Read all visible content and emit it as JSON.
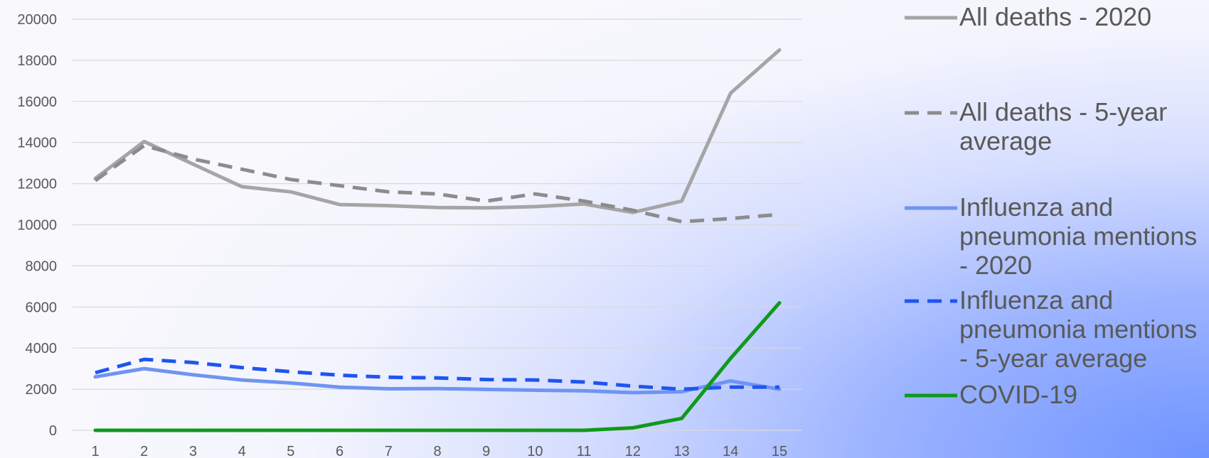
{
  "chart_data": {
    "type": "line",
    "x": [
      1,
      2,
      3,
      4,
      5,
      6,
      7,
      8,
      9,
      10,
      11,
      12,
      13,
      14,
      15
    ],
    "ylim": [
      0,
      20000
    ],
    "yticks": [
      0,
      2000,
      4000,
      6000,
      8000,
      10000,
      12000,
      14000,
      16000,
      18000,
      20000
    ],
    "grid": true,
    "legend_position": "right",
    "series": [
      {
        "name": "All deaths - 2020",
        "legend_lines": [
          "All deaths - 2020"
        ],
        "color": "#a5a5a5",
        "style": "solid",
        "values": [
          12250,
          14050,
          12950,
          11850,
          11600,
          10980,
          10930,
          10840,
          10820,
          10880,
          11010,
          10600,
          11150,
          16400,
          18500
        ]
      },
      {
        "name": "All deaths - 5-year average",
        "legend_lines": [
          "All deaths - 5-year",
          "average"
        ],
        "color": "#8c8c8c",
        "style": "dashed",
        "values": [
          12150,
          13850,
          13200,
          12700,
          12200,
          11900,
          11600,
          11500,
          11150,
          11500,
          11150,
          10700,
          10150,
          10300,
          10500
        ]
      },
      {
        "name": "Influenza and pneumonia mentions - 2020",
        "legend_lines": [
          "Influenza and",
          "pneumonia mentions",
          "- 2020"
        ],
        "color": "#6f94f2",
        "style": "solid",
        "values": [
          2600,
          3000,
          2700,
          2450,
          2300,
          2100,
          2020,
          2030,
          1990,
          1950,
          1920,
          1830,
          1880,
          2400,
          2000
        ]
      },
      {
        "name": "Influenza and pneumonia mentions - 5-year average",
        "legend_lines": [
          "Influenza and",
          "pneumonia mentions",
          "- 5-year average"
        ],
        "color": "#1f55f0",
        "style": "dashed",
        "values": [
          2800,
          3450,
          3300,
          3050,
          2850,
          2680,
          2580,
          2550,
          2470,
          2450,
          2350,
          2150,
          2000,
          2100,
          2100
        ]
      },
      {
        "name": "COVID-19",
        "legend_lines": [
          "COVID-19"
        ],
        "color": "#0f9a1a",
        "style": "solid",
        "values": [
          0,
          0,
          0,
          0,
          0,
          0,
          0,
          0,
          0,
          0,
          0,
          120,
          580,
          3500,
          6200
        ]
      }
    ]
  }
}
